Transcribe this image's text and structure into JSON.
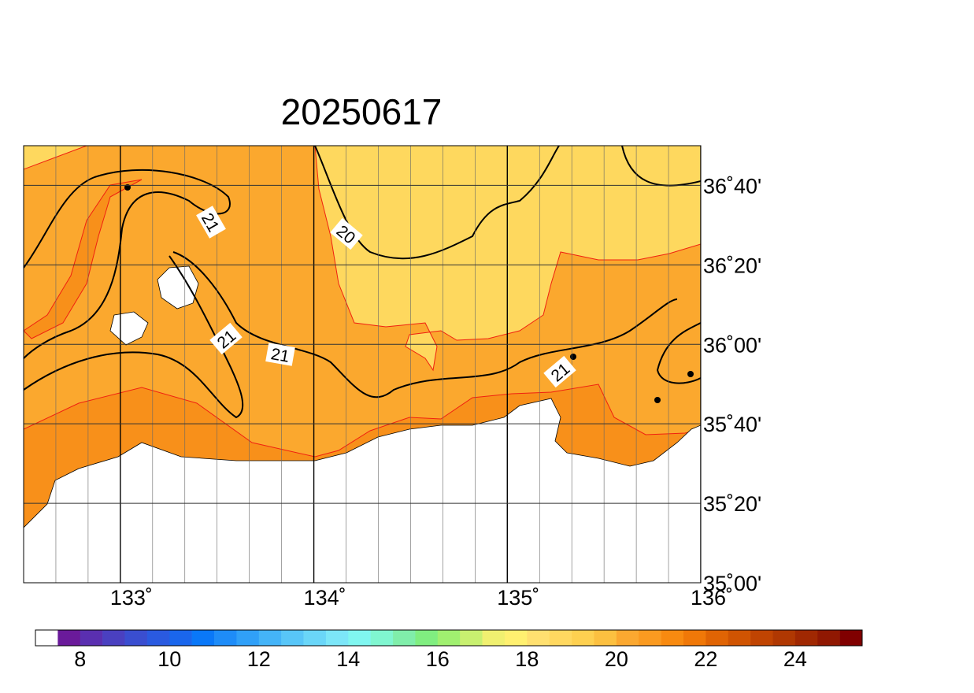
{
  "map": {
    "title": "20250617",
    "xlim": [
      132.5,
      136
    ],
    "ylim": [
      35,
      36.8333
    ],
    "xticks": [
      {
        "value": 133,
        "label": "133˚"
      },
      {
        "value": 134,
        "label": "134˚"
      },
      {
        "value": 135,
        "label": "135˚"
      },
      {
        "value": 136,
        "label": "136˚"
      }
    ],
    "yticks": [
      {
        "value": 35,
        "label": "35˚00'"
      },
      {
        "value": 35.3333,
        "label": "35˚20'"
      },
      {
        "value": 35.6667,
        "label": "35˚40'"
      },
      {
        "value": 36,
        "label": "36˚00'"
      },
      {
        "value": 36.3333,
        "label": "36˚20'"
      },
      {
        "value": 36.6667,
        "label": "36˚40'"
      }
    ],
    "contour_labels": [
      "21",
      "20",
      "21",
      "21",
      "21"
    ],
    "colorbar": {
      "lim": [
        7,
        25.5
      ],
      "ticks": [
        8,
        10,
        12,
        14,
        16,
        18,
        20,
        22,
        24
      ],
      "colors": [
        "#ffffff",
        "#6a1a9a",
        "#5a2fb0",
        "#4a40c0",
        "#3a4ed0",
        "#2a5ae0",
        "#1a66ec",
        "#0a78f8",
        "#1e8cf8",
        "#30a0f8",
        "#44b4f8",
        "#58c6f8",
        "#6ad6f8",
        "#7ce6f8",
        "#80f6f0",
        "#80f6d0",
        "#80eeaa",
        "#80ee80",
        "#a0f070",
        "#c8f070",
        "#f0f070",
        "#fff070",
        "#ffe070",
        "#ffd860",
        "#fed050",
        "#fcc040",
        "#fba830",
        "#fa9a20",
        "#f88a10",
        "#f07808",
        "#e06404",
        "#d05402",
        "#c04402",
        "#b03802",
        "#a02802",
        "#901802",
        "#800000"
      ]
    }
  }
}
